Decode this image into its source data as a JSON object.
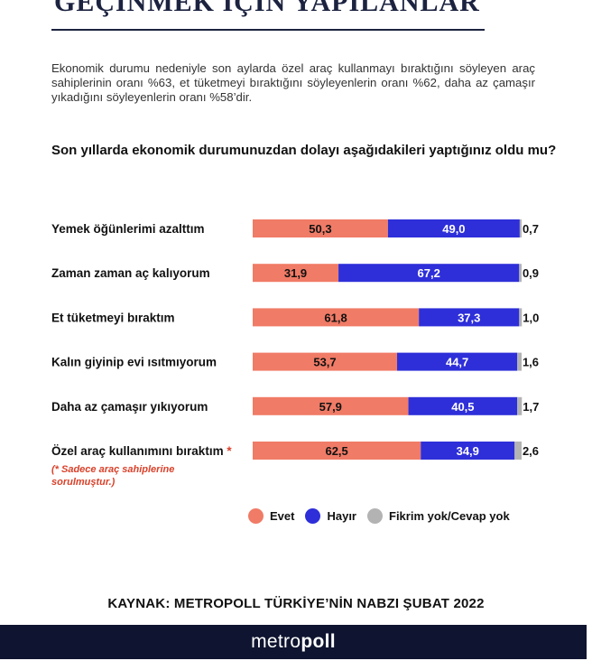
{
  "title": "GEÇİNMEK İÇİN YAPILANLAR",
  "intro": "Ekonomik durumu nedeniyle son aylarda özel araç kullanmayı bıraktığını söyleyen araç sahiplerinin oranı %63, et tüketmeyi bıraktığını söyleyenlerin oranı %62, daha az çamaşır yıkadığını söyleyenlerin oranı %58’dir.",
  "question": "Son yıllarda ekonomik durumunuzdan dolayı aşağıdakileri yaptığınız oldu mu?",
  "note": "(* Sadece araç sahiplerine sorulmuştur.)",
  "source": "KAYNAK: METROPOLL TÜRKİYE’NİN NABZI ŞUBAT 2022",
  "brand": {
    "part1": "metro",
    "part2": "poll"
  },
  "colors": {
    "evet": "#f07b66",
    "hayir": "#2e2fd9",
    "fikrim_yok": "#b3b3b3",
    "footer": "#0f1530",
    "note": "#d9412a"
  },
  "chart_data": {
    "type": "bar",
    "orientation": "horizontal",
    "stacked": true,
    "categories": [
      "Yemek öğünlerimi azalttım",
      "Zaman zaman aç kalıyorum",
      "Et tüketmeyi bıraktım",
      "Kalın giyinip evi ısıtmıyorum",
      "Daha az çamaşır yıkıyorum",
      "Özel araç kullanımını bıraktım"
    ],
    "category_markers": [
      "",
      "",
      "",
      "",
      "",
      "*"
    ],
    "series": [
      {
        "name": "Evet",
        "values": [
          50.3,
          31.9,
          61.8,
          53.7,
          57.9,
          62.5
        ],
        "labels": [
          "50,3",
          "31,9",
          "61,8",
          "53,7",
          "57,9",
          "62,5"
        ]
      },
      {
        "name": "Hayır",
        "values": [
          49.0,
          67.2,
          37.3,
          44.7,
          40.5,
          34.9
        ],
        "labels": [
          "49,0",
          "67,2",
          "37,3",
          "44,7",
          "40,5",
          "34,9"
        ]
      },
      {
        "name": "Fikrim yok/Cevap yok",
        "values": [
          0.7,
          0.9,
          1.0,
          1.6,
          1.7,
          2.6
        ],
        "labels": [
          "0,7",
          "0,9",
          "1,0",
          "1,6",
          "1,7",
          "2,6"
        ]
      }
    ],
    "xlim": [
      0,
      100
    ],
    "legend": "bottom",
    "grid": false
  }
}
